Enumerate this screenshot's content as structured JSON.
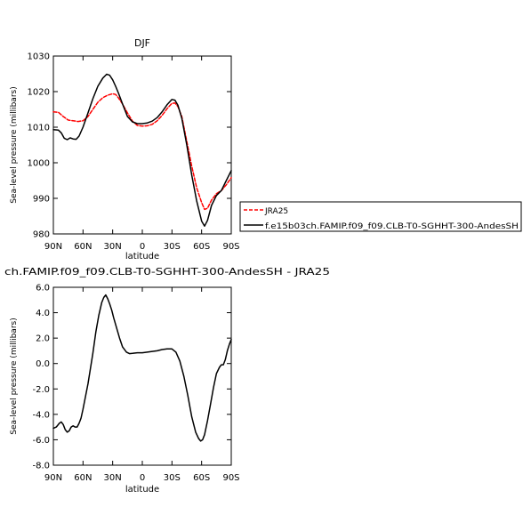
{
  "chart_data": [
    {
      "type": "line",
      "title": "DJF",
      "xlabel": "latitude",
      "ylabel": "Sea-level pressure (millibars)",
      "xlim": [
        90,
        -90
      ],
      "ylim": [
        980,
        1030
      ],
      "x_ticks": [
        90,
        60,
        30,
        0,
        -30,
        -60,
        -90
      ],
      "x_tick_labels": [
        "90N",
        "60N",
        "30N",
        "0",
        "30S",
        "60S",
        "90S"
      ],
      "y_ticks": [
        980,
        990,
        1000,
        1010,
        1020,
        1030
      ],
      "y_tick_labels": [
        "980",
        "990",
        "1000",
        "1010",
        "1020",
        "1030"
      ],
      "legend": "right",
      "series": [
        {
          "name": "JRA25",
          "color": "#ff0000",
          "dash": "dashed",
          "points": [
            [
              90,
              1014.3
            ],
            [
              85,
              1014.2
            ],
            [
              80,
              1013.0
            ],
            [
              75,
              1012.0
            ],
            [
              70,
              1011.8
            ],
            [
              65,
              1011.6
            ],
            [
              60,
              1011.8
            ],
            [
              55,
              1013.0
            ],
            [
              50,
              1015.0
            ],
            [
              45,
              1017.0
            ],
            [
              40,
              1018.3
            ],
            [
              35,
              1019.0
            ],
            [
              30,
              1019.4
            ],
            [
              27,
              1019.2
            ],
            [
              24,
              1018.2
            ],
            [
              20,
              1016.5
            ],
            [
              15,
              1014.0
            ],
            [
              10,
              1011.7
            ],
            [
              5,
              1010.5
            ],
            [
              0,
              1010.3
            ],
            [
              -5,
              1010.4
            ],
            [
              -10,
              1010.8
            ],
            [
              -15,
              1011.8
            ],
            [
              -20,
              1013.3
            ],
            [
              -25,
              1015.2
            ],
            [
              -30,
              1016.7
            ],
            [
              -33,
              1016.8
            ],
            [
              -36,
              1015.8
            ],
            [
              -40,
              1013.0
            ],
            [
              -45,
              1006.0
            ],
            [
              -50,
              999.0
            ],
            [
              -55,
              993.0
            ],
            [
              -60,
              988.8
            ],
            [
              -63,
              986.9
            ],
            [
              -66,
              987.2
            ],
            [
              -70,
              989.5
            ],
            [
              -75,
              991.3
            ],
            [
              -80,
              992.2
            ],
            [
              -85,
              993.8
            ],
            [
              -90,
              995.8
            ]
          ]
        },
        {
          "name": "f.e15b03ch.FAMIP.f09_f09.CLB-T0-SGHHT-300-AndesSH",
          "color": "#000000",
          "dash": "solid",
          "points": [
            [
              90,
              1009.3
            ],
            [
              85,
              1009.2
            ],
            [
              82,
              1008.4
            ],
            [
              79,
              1006.9
            ],
            [
              76,
              1006.5
            ],
            [
              73,
              1007.0
            ],
            [
              70,
              1006.7
            ],
            [
              67,
              1006.6
            ],
            [
              64,
              1007.5
            ],
            [
              60,
              1010.0
            ],
            [
              55,
              1014.0
            ],
            [
              50,
              1018.0
            ],
            [
              45,
              1021.5
            ],
            [
              40,
              1023.8
            ],
            [
              36,
              1024.9
            ],
            [
              33,
              1024.6
            ],
            [
              30,
              1023.3
            ],
            [
              27,
              1021.5
            ],
            [
              24,
              1019.5
            ],
            [
              20,
              1016.5
            ],
            [
              15,
              1013.0
            ],
            [
              10,
              1011.5
            ],
            [
              5,
              1011.0
            ],
            [
              0,
              1011.0
            ],
            [
              -5,
              1011.2
            ],
            [
              -10,
              1011.7
            ],
            [
              -15,
              1012.7
            ],
            [
              -20,
              1014.3
            ],
            [
              -25,
              1016.3
            ],
            [
              -30,
              1017.8
            ],
            [
              -33,
              1017.6
            ],
            [
              -36,
              1016.2
            ],
            [
              -40,
              1012.5
            ],
            [
              -45,
              1005.0
            ],
            [
              -50,
              996.5
            ],
            [
              -55,
              989.3
            ],
            [
              -60,
              983.6
            ],
            [
              -63,
              982.2
            ],
            [
              -66,
              983.8
            ],
            [
              -70,
              988.0
            ],
            [
              -75,
              990.8
            ],
            [
              -80,
              992.2
            ],
            [
              -85,
              995.0
            ],
            [
              -90,
              997.8
            ]
          ]
        }
      ]
    },
    {
      "type": "line",
      "title": "ch.FAMIP.f09_f09.CLB-T0-SGHHT-300-AndesSH - JRA25",
      "xlabel": "latitude",
      "ylabel": "Sea-level pressure (millibars)",
      "xlim": [
        90,
        -90
      ],
      "ylim": [
        -8,
        6
      ],
      "x_ticks": [
        90,
        60,
        30,
        0,
        -30,
        -60,
        -90
      ],
      "x_tick_labels": [
        "90N",
        "60N",
        "30N",
        "0",
        "30S",
        "60S",
        "90S"
      ],
      "y_ticks": [
        -8,
        -6,
        -4,
        -2,
        0,
        2,
        4,
        6
      ],
      "y_tick_labels": [
        "-8.0",
        "-6.0",
        "-4.0",
        "-2.0",
        "0.0",
        "2.0",
        "4.0",
        "6.0"
      ],
      "series": [
        {
          "color": "#000000",
          "dash": "solid",
          "points": [
            [
              90,
              -5.1
            ],
            [
              87,
              -5.0
            ],
            [
              84,
              -4.7
            ],
            [
              82,
              -4.6
            ],
            [
              80,
              -4.8
            ],
            [
              78,
              -5.2
            ],
            [
              76,
              -5.4
            ],
            [
              74,
              -5.3
            ],
            [
              72,
              -5.0
            ],
            [
              70,
              -4.9
            ],
            [
              68,
              -5.0
            ],
            [
              66,
              -5.0
            ],
            [
              64,
              -4.7
            ],
            [
              62,
              -4.3
            ],
            [
              60,
              -3.6
            ],
            [
              55,
              -1.6
            ],
            [
              50,
              0.8
            ],
            [
              47,
              2.5
            ],
            [
              44,
              3.8
            ],
            [
              41,
              4.8
            ],
            [
              39,
              5.2
            ],
            [
              37,
              5.4
            ],
            [
              35,
              5.1
            ],
            [
              33,
              4.7
            ],
            [
              31,
              4.2
            ],
            [
              29,
              3.6
            ],
            [
              26,
              2.8
            ],
            [
              23,
              2.0
            ],
            [
              20,
              1.3
            ],
            [
              16,
              0.9
            ],
            [
              13,
              0.78
            ],
            [
              10,
              0.8
            ],
            [
              5,
              0.85
            ],
            [
              0,
              0.85
            ],
            [
              -5,
              0.9
            ],
            [
              -10,
              0.95
            ],
            [
              -15,
              1.0
            ],
            [
              -20,
              1.1
            ],
            [
              -25,
              1.15
            ],
            [
              -30,
              1.15
            ],
            [
              -34,
              0.9
            ],
            [
              -38,
              0.2
            ],
            [
              -42,
              -1.0
            ],
            [
              -46,
              -2.5
            ],
            [
              -50,
              -4.2
            ],
            [
              -54,
              -5.4
            ],
            [
              -57,
              -5.9
            ],
            [
              -59,
              -6.1
            ],
            [
              -61,
              -6.0
            ],
            [
              -63,
              -5.6
            ],
            [
              -66,
              -4.5
            ],
            [
              -69,
              -3.2
            ],
            [
              -72,
              -1.9
            ],
            [
              -75,
              -0.8
            ],
            [
              -78,
              -0.3
            ],
            [
              -80,
              -0.1
            ],
            [
              -82,
              -0.1
            ],
            [
              -84,
              0.3
            ],
            [
              -86,
              1.0
            ],
            [
              -88,
              1.5
            ],
            [
              -90,
              1.9
            ]
          ]
        }
      ]
    }
  ]
}
